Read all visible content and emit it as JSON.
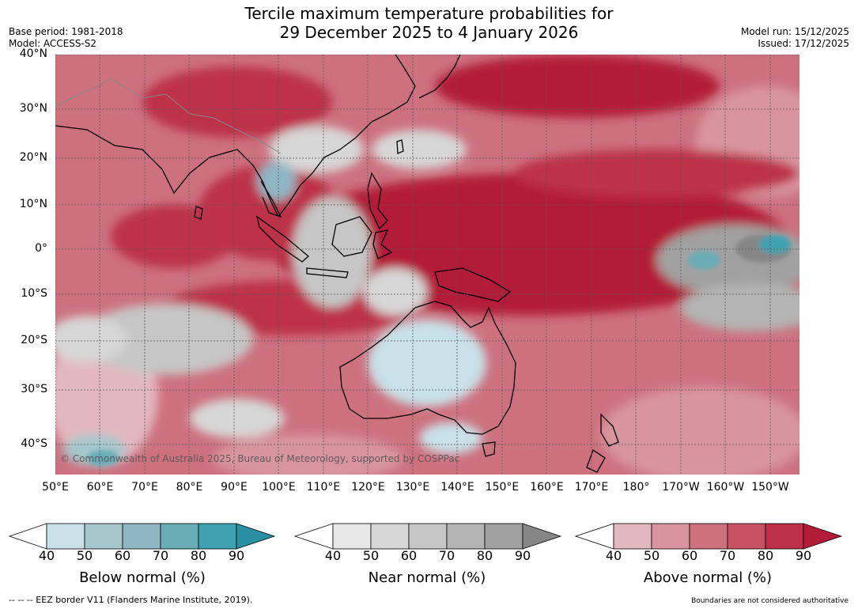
{
  "title": {
    "line1": "Tercile maximum temperature probabilities for",
    "line2": "29 December 2025 to 4 January 2026"
  },
  "meta": {
    "base_period": "Base period: 1981-2018",
    "model": "Model: ACCESS-S2",
    "model_run": "Model run: 15/12/2025",
    "issued": "Issued: 17/12/2025"
  },
  "lat_labels": [
    "40°N",
    "30°N",
    "20°N",
    "10°N",
    "0°",
    "10°S",
    "20°S",
    "30°S",
    "40°S"
  ],
  "lon_labels": [
    "50°E",
    "60°E",
    "70°E",
    "80°E",
    "90°E",
    "100°E",
    "110°E",
    "120°E",
    "130°E",
    "140°E",
    "150°E",
    "160°E",
    "170°E",
    "180°",
    "170°W",
    "160°W",
    "150°W"
  ],
  "copyright": "© Commonwealth of Australia 2025, Bureau of Meteorology, supported by COSPPac",
  "colorbars": [
    {
      "title": "Below normal (%)",
      "ticks": [
        "40",
        "50",
        "60",
        "70",
        "80",
        "90"
      ],
      "colors": [
        "#c9e1e8",
        "#a6c8cc",
        "#8fb6c3",
        "#6aadb7",
        "#3fa2b1",
        "#2a8fa3"
      ]
    },
    {
      "title": "Near normal (%)",
      "ticks": [
        "40",
        "50",
        "60",
        "70",
        "80",
        "90"
      ],
      "colors": [
        "#e7e7e7",
        "#d7d7d7",
        "#c6c6c6",
        "#b4b4b4",
        "#a1a1a1",
        "#868686"
      ]
    },
    {
      "title": "Above normal (%)",
      "ticks": [
        "40",
        "50",
        "60",
        "70",
        "80",
        "90"
      ],
      "colors": [
        "#e3b7bf",
        "#d8959f",
        "#cd717f",
        "#c75262",
        "#bd3048",
        "#b31c38"
      ]
    }
  ],
  "footer": {
    "eez": "--  --  -- EEZ border V11 (Flanders Marine Institute, 2019).",
    "disclaimer": "Boundaries are not considered authoritative"
  }
}
